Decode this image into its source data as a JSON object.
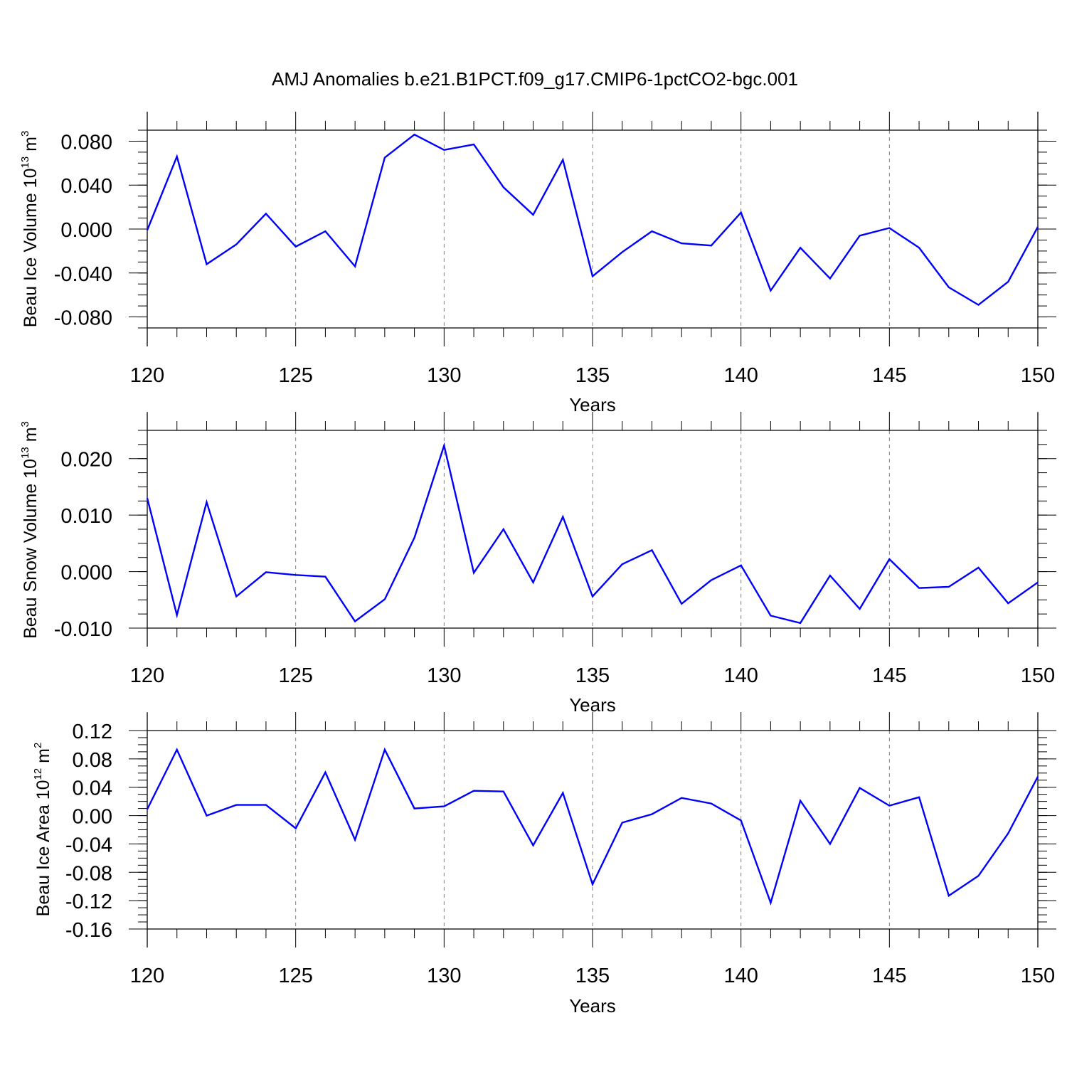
{
  "title": "AMJ Anomalies b.e21.B1PCT.f09_g17.CMIP6-1pctCO2-bgc.001",
  "colors": {
    "series": "#0000ff",
    "axis": "#000000",
    "grid": "#808080"
  },
  "chart_data": [
    {
      "type": "line",
      "ylabel_main": "Beau Ice Volume 10",
      "ylabel_exp": "13",
      "ylabel_unit": " m",
      "ylabel_unit_exp": "3",
      "xlabel": "Years",
      "xlim": [
        120,
        150
      ],
      "ylim": [
        -0.09,
        0.09
      ],
      "yticks": [
        0.08,
        0.04,
        0.0,
        -0.04,
        -0.08
      ],
      "yticklabels": [
        "0.080",
        "0.040",
        "0.000",
        "-0.040",
        "-0.080"
      ],
      "yminor_step": 0.01,
      "xticks": [
        120,
        125,
        130,
        135,
        140,
        145,
        150
      ],
      "xticklabels": [
        "120",
        "125",
        "130",
        "135",
        "140",
        "145",
        "150"
      ],
      "grid": "vertical dashed at major x ticks",
      "x": [
        120,
        121,
        122,
        123,
        124,
        125,
        126,
        127,
        128,
        129,
        130,
        131,
        132,
        133,
        134,
        135,
        136,
        137,
        138,
        139,
        140,
        141,
        142,
        143,
        144,
        145,
        146,
        147,
        148,
        149,
        150
      ],
      "y": [
        -0.001,
        0.066,
        -0.032,
        -0.014,
        0.014,
        -0.016,
        -0.002,
        -0.034,
        0.065,
        0.086,
        0.072,
        0.077,
        0.038,
        0.013,
        0.063,
        -0.043,
        -0.021,
        -0.002,
        -0.013,
        -0.015,
        0.015,
        -0.056,
        -0.017,
        -0.045,
        -0.006,
        0.001,
        -0.017,
        -0.053,
        -0.069,
        -0.048,
        0.002
      ]
    },
    {
      "type": "line",
      "ylabel_main": "Beau Snow Volume 10",
      "ylabel_exp": "13",
      "ylabel_unit": " m",
      "ylabel_unit_exp": "3",
      "xlabel": "Years",
      "xlim": [
        120,
        150
      ],
      "ylim": [
        -0.01,
        0.025
      ],
      "yticks": [
        0.02,
        0.01,
        0.0,
        -0.01
      ],
      "yticklabels": [
        "0.020",
        "0.010",
        "0.000",
        "-0.010"
      ],
      "yminor_step": 0.0025,
      "xticks": [
        120,
        125,
        130,
        135,
        140,
        145,
        150
      ],
      "xticklabels": [
        "120",
        "125",
        "130",
        "135",
        "140",
        "145",
        "150"
      ],
      "grid": "vertical dashed at major x ticks",
      "x": [
        120,
        121,
        122,
        123,
        124,
        125,
        126,
        127,
        128,
        129,
        130,
        131,
        132,
        133,
        134,
        135,
        136,
        137,
        138,
        139,
        140,
        141,
        142,
        143,
        144,
        145,
        146,
        147,
        148,
        149,
        150
      ],
      "y": [
        0.013,
        -0.0077,
        0.0123,
        -0.0044,
        -0.0001,
        -0.0006,
        -0.0009,
        -0.0088,
        -0.0049,
        0.006,
        0.0223,
        -0.0002,
        0.0075,
        -0.0019,
        0.0097,
        -0.0044,
        0.0013,
        0.0038,
        -0.0057,
        -0.0015,
        0.0011,
        -0.0078,
        -0.0091,
        -0.0007,
        -0.0066,
        0.0022,
        -0.0029,
        -0.0027,
        0.0007,
        -0.0056,
        -0.0019
      ]
    },
    {
      "type": "line",
      "ylabel_main": "Beau Ice Area 10",
      "ylabel_exp": "12",
      "ylabel_unit": " m",
      "ylabel_unit_exp": "2",
      "xlabel": "Years",
      "xlim": [
        120,
        150
      ],
      "ylim": [
        -0.16,
        0.12
      ],
      "yticks": [
        0.12,
        0.08,
        0.04,
        0.0,
        -0.04,
        -0.08,
        -0.12,
        -0.16
      ],
      "yticklabels": [
        "0.12",
        "0.08",
        "0.04",
        "0.00",
        "-0.04",
        "-0.08",
        "-0.12",
        "-0.16"
      ],
      "yminor_step": 0.01,
      "xticks": [
        120,
        125,
        130,
        135,
        140,
        145,
        150
      ],
      "xticklabels": [
        "120",
        "125",
        "130",
        "135",
        "140",
        "145",
        "150"
      ],
      "grid": "vertical dashed at major x ticks",
      "x": [
        120,
        121,
        122,
        123,
        124,
        125,
        126,
        127,
        128,
        129,
        130,
        131,
        132,
        133,
        134,
        135,
        136,
        137,
        138,
        139,
        140,
        141,
        142,
        143,
        144,
        145,
        146,
        147,
        148,
        149,
        150
      ],
      "y": [
        0.009,
        0.093,
        0.0,
        0.015,
        0.015,
        -0.018,
        0.061,
        -0.034,
        0.093,
        0.01,
        0.013,
        0.035,
        0.034,
        -0.042,
        0.032,
        -0.097,
        -0.01,
        0.002,
        0.025,
        0.017,
        -0.007,
        -0.123,
        0.021,
        -0.04,
        0.039,
        0.014,
        0.026,
        -0.113,
        -0.085,
        -0.025,
        0.055
      ]
    }
  ]
}
